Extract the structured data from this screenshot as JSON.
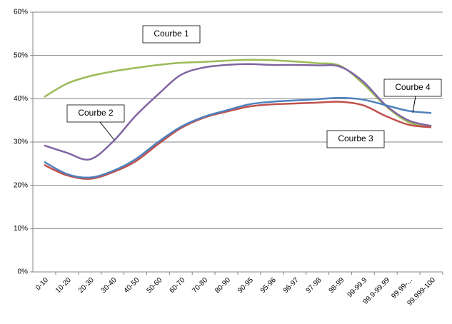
{
  "chart_data": {
    "type": "line",
    "categories": [
      "0-10",
      "10-20",
      "20-30",
      "30-40",
      "40-50",
      "50-60",
      "60-70",
      "70-80",
      "80-90",
      "90-95",
      "95-96",
      "96-97",
      "97-98",
      "98-99",
      "99-99.9",
      "99.9-99.99",
      "99.99-...",
      "99.999-100"
    ],
    "series": [
      {
        "name": "Courbe 1",
        "color": "#9bbb59",
        "values": [
          40.4,
          43.5,
          45.2,
          46.3,
          47.1,
          47.8,
          48.3,
          48.5,
          48.8,
          49.0,
          48.9,
          48.6,
          48.2,
          47.6,
          43.5,
          38.3,
          34.6,
          33.4
        ]
      },
      {
        "name": "Courbe 2",
        "color": "#8064a2",
        "values": [
          29.2,
          27.5,
          26.0,
          30.0,
          36.0,
          41.0,
          45.5,
          47.2,
          47.8,
          48.0,
          47.8,
          47.8,
          47.7,
          47.4,
          44.0,
          38.5,
          35.0,
          33.7
        ]
      },
      {
        "name": "Courbe 3",
        "color": "#c0504d",
        "values": [
          24.7,
          22.3,
          21.5,
          23.0,
          25.5,
          29.5,
          33.2,
          35.6,
          37.0,
          38.2,
          38.7,
          38.9,
          39.1,
          39.3,
          38.5,
          36.0,
          34.0,
          33.4
        ]
      },
      {
        "name": "Courbe 4",
        "color": "#4f81bd",
        "values": [
          25.4,
          22.6,
          21.8,
          23.3,
          26.0,
          30.0,
          33.5,
          35.8,
          37.3,
          38.7,
          39.3,
          39.6,
          39.9,
          40.2,
          39.8,
          38.5,
          37.2,
          36.7
        ]
      }
    ],
    "ylim": [
      0,
      60
    ],
    "yticks": [
      {
        "value": 0,
        "label": "0%"
      },
      {
        "value": 10,
        "label": "10%"
      },
      {
        "value": 20,
        "label": "20%"
      },
      {
        "value": 30,
        "label": "30%"
      },
      {
        "value": 40,
        "label": "40%"
      },
      {
        "value": 50,
        "label": "50%"
      },
      {
        "value": 60,
        "label": "60%"
      }
    ],
    "grid": true
  }
}
